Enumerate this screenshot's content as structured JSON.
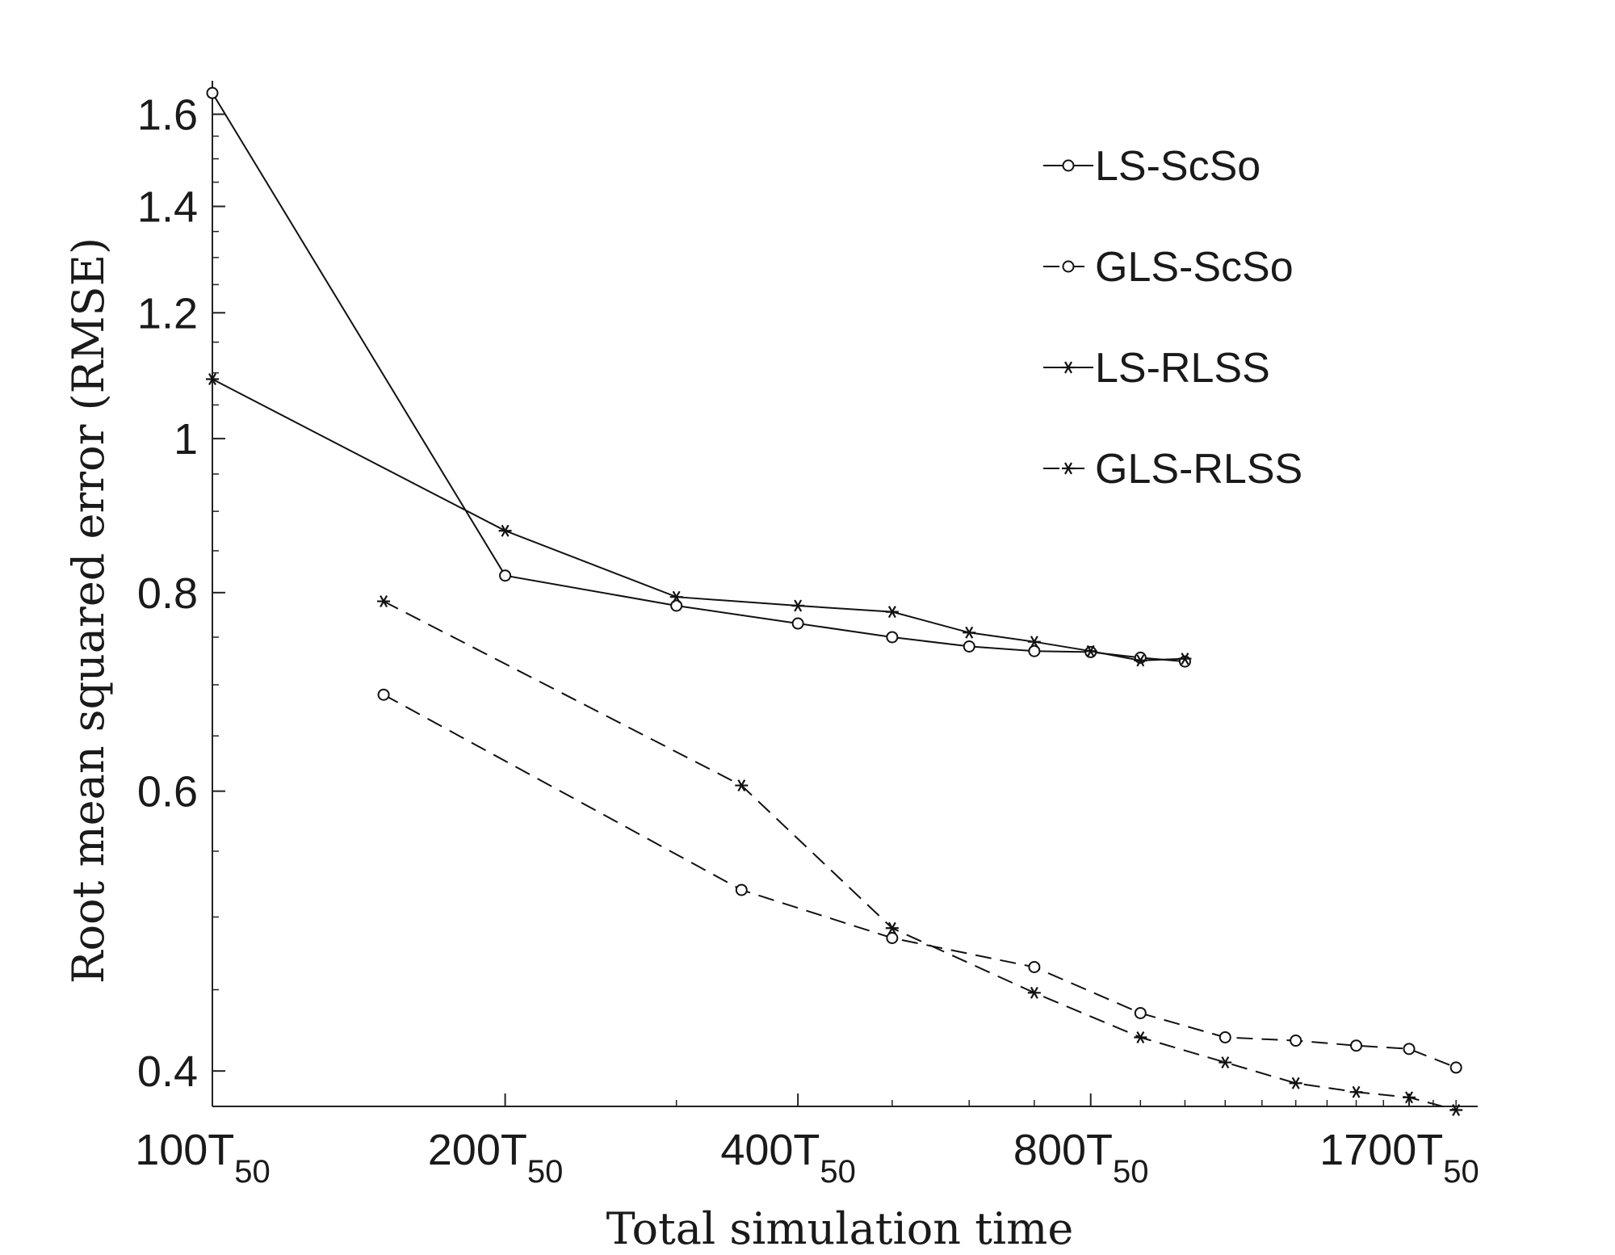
{
  "chart_data": {
    "type": "line",
    "xlabel": "Total simulation time",
    "ylabel": "Root mean squared error (RMSE)",
    "xscale": "log",
    "yscale": "log",
    "xlim": [
      100,
      2000
    ],
    "ylim": [
      0.38,
      1.66
    ],
    "x_ticks": [
      {
        "value": 100,
        "main": "100T",
        "sub": "50"
      },
      {
        "value": 200,
        "main": "200T",
        "sub": "50"
      },
      {
        "value": 400,
        "main": "400T",
        "sub": "50"
      },
      {
        "value": 800,
        "main": "800T",
        "sub": "50"
      },
      {
        "value": 1700,
        "main": "1700T",
        "sub": "50"
      }
    ],
    "y_ticks": [
      {
        "value": 0.4,
        "label": "0.4"
      },
      {
        "value": 0.6,
        "label": "0.6"
      },
      {
        "value": 0.8,
        "label": "0.8"
      },
      {
        "value": 1.0,
        "label": "1"
      },
      {
        "value": 1.2,
        "label": "1.2"
      },
      {
        "value": 1.4,
        "label": "1.4"
      },
      {
        "value": 1.6,
        "label": "1.6"
      }
    ],
    "legend_position": "top-right",
    "series": [
      {
        "name": "LS-ScSo",
        "line_style": "solid",
        "marker": "circle",
        "x": [
          100,
          200,
          300,
          400,
          500,
          600,
          700,
          800,
          900,
          1000
        ],
        "y": [
          1.65,
          0.82,
          0.785,
          0.765,
          0.75,
          0.74,
          0.735,
          0.734,
          0.728,
          0.724
        ]
      },
      {
        "name": "GLS-ScSo",
        "line_style": "dashed",
        "marker": "circle",
        "x": [
          150,
          350,
          500,
          700,
          900,
          1100,
          1300,
          1500,
          1700,
          1900
        ],
        "y": [
          0.69,
          0.52,
          0.485,
          0.465,
          0.435,
          0.42,
          0.418,
          0.415,
          0.413,
          0.402
        ]
      },
      {
        "name": "LS-RLSS",
        "line_style": "solid",
        "marker": "star",
        "x": [
          100,
          200,
          300,
          400,
          500,
          600,
          700,
          800,
          900,
          1000
        ],
        "y": [
          1.09,
          0.875,
          0.795,
          0.785,
          0.778,
          0.755,
          0.745,
          0.735,
          0.725,
          0.727
        ]
      },
      {
        "name": "GLS-RLSS",
        "line_style": "dashed",
        "marker": "star",
        "x": [
          150,
          350,
          500,
          700,
          900,
          1100,
          1300,
          1500,
          1700,
          1900
        ],
        "y": [
          0.79,
          0.605,
          0.492,
          0.448,
          0.42,
          0.405,
          0.393,
          0.388,
          0.385,
          0.378
        ]
      }
    ]
  }
}
